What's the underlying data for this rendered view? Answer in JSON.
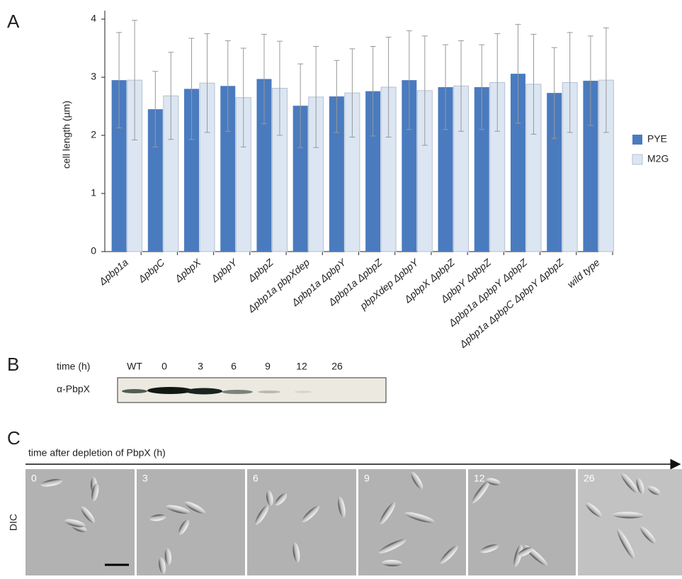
{
  "panel_labels": [
    "A",
    "B",
    "C"
  ],
  "chart_data": {
    "type": "bar",
    "ylabel": "cell length (µm)",
    "categories": [
      "Δpbp1a",
      "ΔpbpC",
      "ΔpbpX",
      "ΔpbpY",
      "ΔpbpZ",
      "Δpbp1a pbpXdep",
      "Δpbp1a ΔpbpY",
      "Δpbp1a ΔpbpZ",
      "pbpXdep ΔpbpY",
      "ΔpbpX ΔpbpZ",
      "ΔpbpY ΔpbpZ",
      "Δpbp1a ΔpbpY ΔpbpZ",
      "Δpbp1a ΔpbpC ΔpbpY ΔpbpZ",
      "wild type"
    ],
    "series": [
      {
        "name": "PYE",
        "color": "#4a7bbf",
        "values": [
          2.95,
          2.45,
          2.8,
          2.85,
          2.97,
          2.51,
          2.67,
          2.76,
          2.95,
          2.83,
          2.83,
          3.06,
          2.73,
          2.94
        ],
        "errors": [
          0.82,
          0.65,
          0.87,
          0.78,
          0.77,
          0.72,
          0.62,
          0.77,
          0.85,
          0.73,
          0.73,
          0.85,
          0.78,
          0.77
        ]
      },
      {
        "name": "M2G",
        "color": "#dce6f2",
        "values": [
          2.95,
          2.68,
          2.9,
          2.65,
          2.81,
          2.66,
          2.73,
          2.83,
          2.77,
          2.85,
          2.91,
          2.88,
          2.91,
          2.95
        ],
        "errors": [
          1.03,
          0.75,
          0.85,
          0.85,
          0.81,
          0.87,
          0.76,
          0.86,
          0.94,
          0.78,
          0.84,
          0.86,
          0.86,
          0.9
        ]
      }
    ],
    "ylim": [
      0,
      4
    ],
    "yticks": [
      0,
      1,
      2,
      3,
      4
    ],
    "legend": "right"
  },
  "blot": {
    "axis_label": "time (h)",
    "lanes": [
      "WT",
      "0",
      "3",
      "6",
      "9",
      "12",
      "26"
    ],
    "antibody": "α-PbpX"
  },
  "microscopy": {
    "axis_label": "time after depletion of PbpX (h)",
    "channel": "DIC",
    "timepoints": [
      "0",
      "3",
      "6",
      "9",
      "12",
      "26"
    ]
  }
}
